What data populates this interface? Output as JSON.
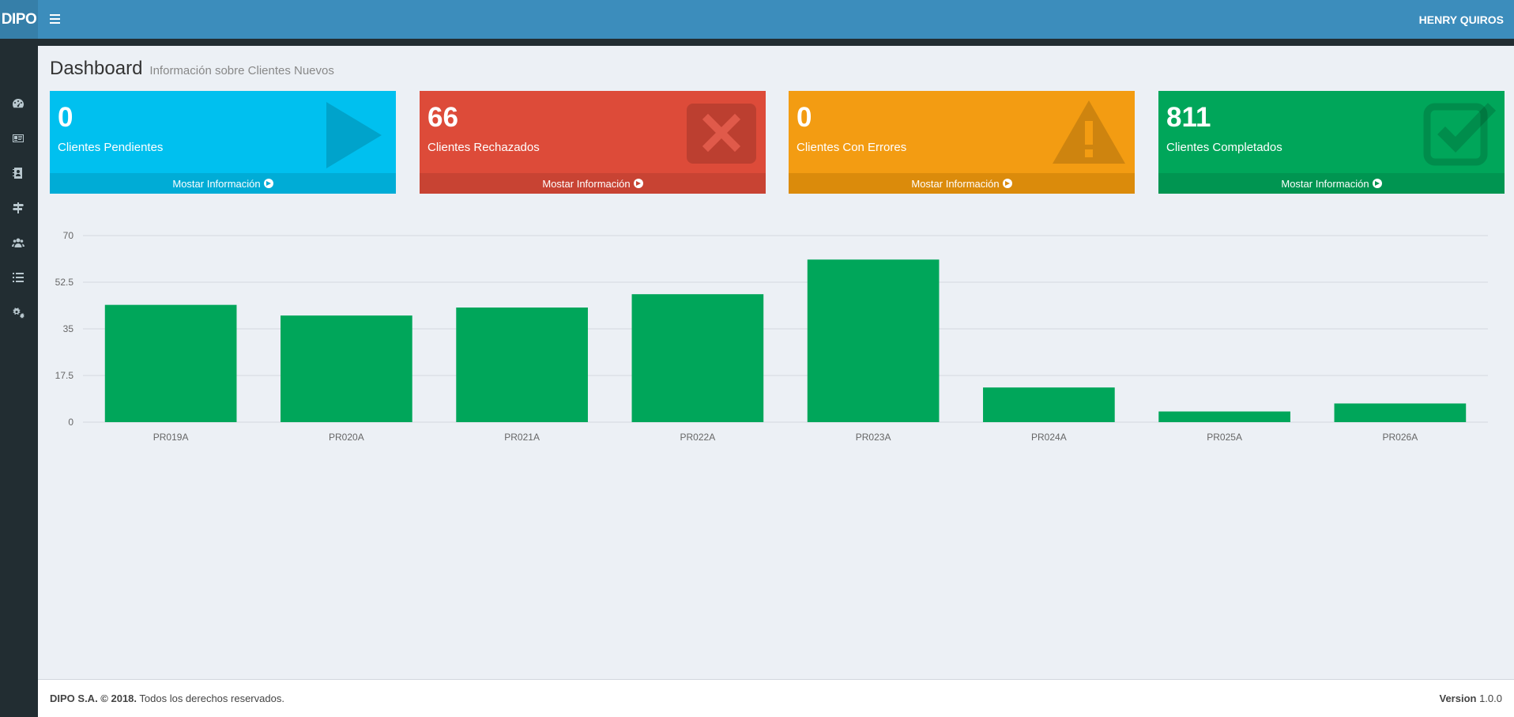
{
  "header": {
    "logo": "DIPO",
    "user_name": "HENRY QUIROS"
  },
  "sidebar": {
    "icons": [
      "dashboard-icon",
      "id-card-icon",
      "address-book-icon",
      "sign-post-icon",
      "users-icon",
      "list-icon",
      "cogs-icon"
    ]
  },
  "content": {
    "title": "Dashboard",
    "subtitle": "Información sobre Clientes Nuevos"
  },
  "boxes": [
    {
      "value": "0",
      "label": "Clientes Pendientes",
      "link": "Mostar Información",
      "icon": "play-icon",
      "color": "#00c0ef"
    },
    {
      "value": "66",
      "label": "Clientes Rechazados",
      "link": "Mostar Información",
      "icon": "close-square-icon",
      "color": "#dd4b39"
    },
    {
      "value": "0",
      "label": "Clientes Con Errores",
      "link": "Mostar Información",
      "icon": "warning-icon",
      "color": "#f39c12"
    },
    {
      "value": "811",
      "label": "Clientes Completados",
      "link": "Mostar Información",
      "icon": "check-square-icon",
      "color": "#00a65a"
    }
  ],
  "chart_data": {
    "type": "bar",
    "categories": [
      "PR019A",
      "PR020A",
      "PR021A",
      "PR022A",
      "PR023A",
      "PR024A",
      "PR025A",
      "PR026A"
    ],
    "values": [
      44,
      40,
      43,
      48,
      61,
      13,
      4,
      7
    ],
    "ylim": [
      0,
      70
    ],
    "yticks": [
      0,
      17.5,
      35,
      52.5,
      70
    ],
    "color": "#00a65a",
    "grid": true
  },
  "footer": {
    "copyright_bold": "DIPO S.A. © 2018.",
    "copyright_rest": " Todos los derechos reservados.",
    "version_label": "Version",
    "version_value": " 1.0.0"
  }
}
